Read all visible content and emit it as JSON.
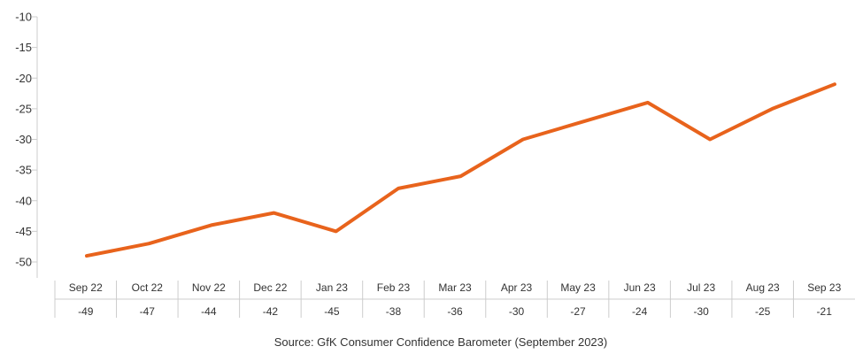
{
  "chart_data": {
    "type": "line",
    "title": "",
    "xlabel": "",
    "ylabel": "",
    "categories": [
      "Sep 22",
      "Oct 22",
      "Nov 22",
      "Dec 22",
      "Jan 23",
      "Feb 23",
      "Mar 23",
      "Apr 23",
      "May 23",
      "Jun 23",
      "Jul 23",
      "Aug 23",
      "Sep 23"
    ],
    "series": [
      {
        "values": [
          -49,
          -47,
          -44,
          -42,
          -45,
          -38,
          -36,
          -30,
          -27,
          -24,
          -30,
          -25,
          -21
        ]
      }
    ],
    "value_labels": [
      "-49",
      "-47",
      "-44",
      "-42",
      "-45",
      "-38",
      "-36",
      "-30",
      "-27",
      "-24",
      "-30",
      "-25",
      "-21"
    ],
    "ylim": [
      -50,
      -10
    ],
    "y_ticks": [
      -10,
      -15,
      -20,
      -25,
      -30,
      -35,
      -40,
      -45,
      -50
    ],
    "y_tick_labels": [
      "-10",
      "-15",
      "-20",
      "-25",
      "-30",
      "-35",
      "-40",
      "-45",
      "-50"
    ],
    "grid": false,
    "legend": "none",
    "line_color": "#e8631c",
    "axis_color": "#cccccc",
    "text_color": "#333333"
  },
  "footer": {
    "source": "Source: GfK Consumer Confidence Barometer (September 2023)"
  }
}
